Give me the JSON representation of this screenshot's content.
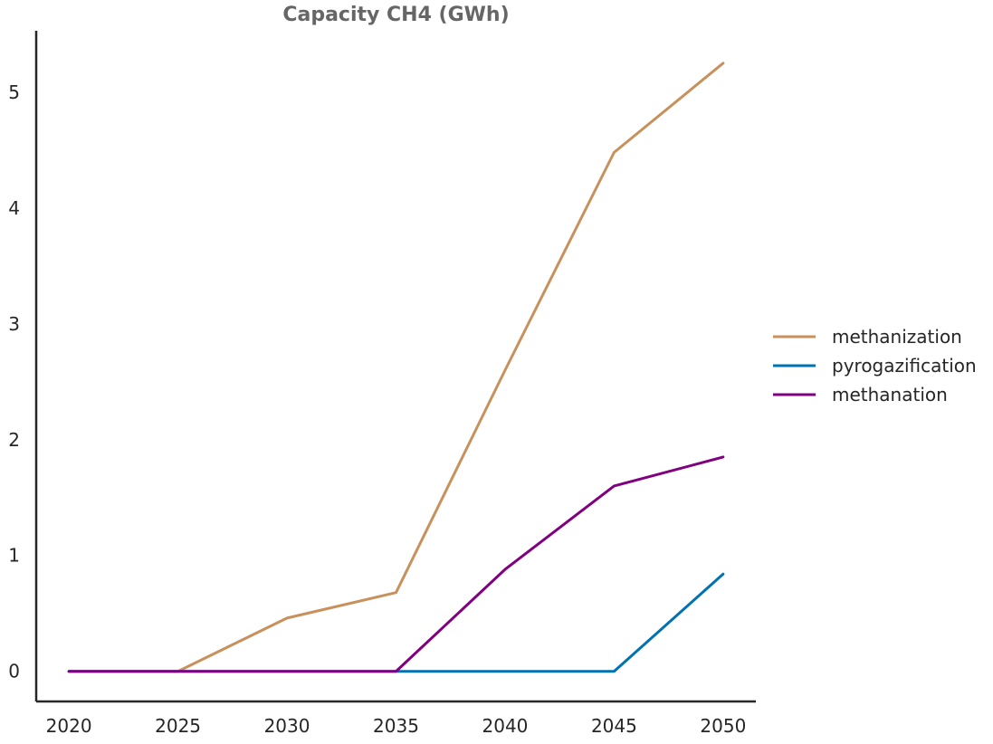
{
  "chart_data": {
    "type": "line",
    "title": "Capacity CH4 (GWh)",
    "xlabel": "",
    "ylabel": "",
    "x": [
      2020,
      2025,
      2030,
      2035,
      2040,
      2045,
      2050
    ],
    "xlim": [
      2018.5,
      2051.5
    ],
    "ylim": [
      -0.26,
      5.53
    ],
    "xticks": [
      "2020",
      "2025",
      "2030",
      "2035",
      "2040",
      "2045",
      "2050"
    ],
    "yticks": [
      "0",
      "1",
      "2",
      "3",
      "4",
      "5"
    ],
    "grid": false,
    "legend_position": "right",
    "series": [
      {
        "name": "methanization",
        "color": "#c8915b",
        "values": [
          0,
          0,
          0.46,
          0.68,
          2.6,
          4.48,
          5.25
        ]
      },
      {
        "name": "pyrogazification",
        "color": "#0072b2",
        "values": [
          0,
          0,
          0,
          0,
          0,
          0,
          0.84
        ]
      },
      {
        "name": "methanation",
        "color": "#800080",
        "values": [
          0,
          0,
          0,
          0,
          0.88,
          1.6,
          1.85
        ]
      }
    ]
  }
}
